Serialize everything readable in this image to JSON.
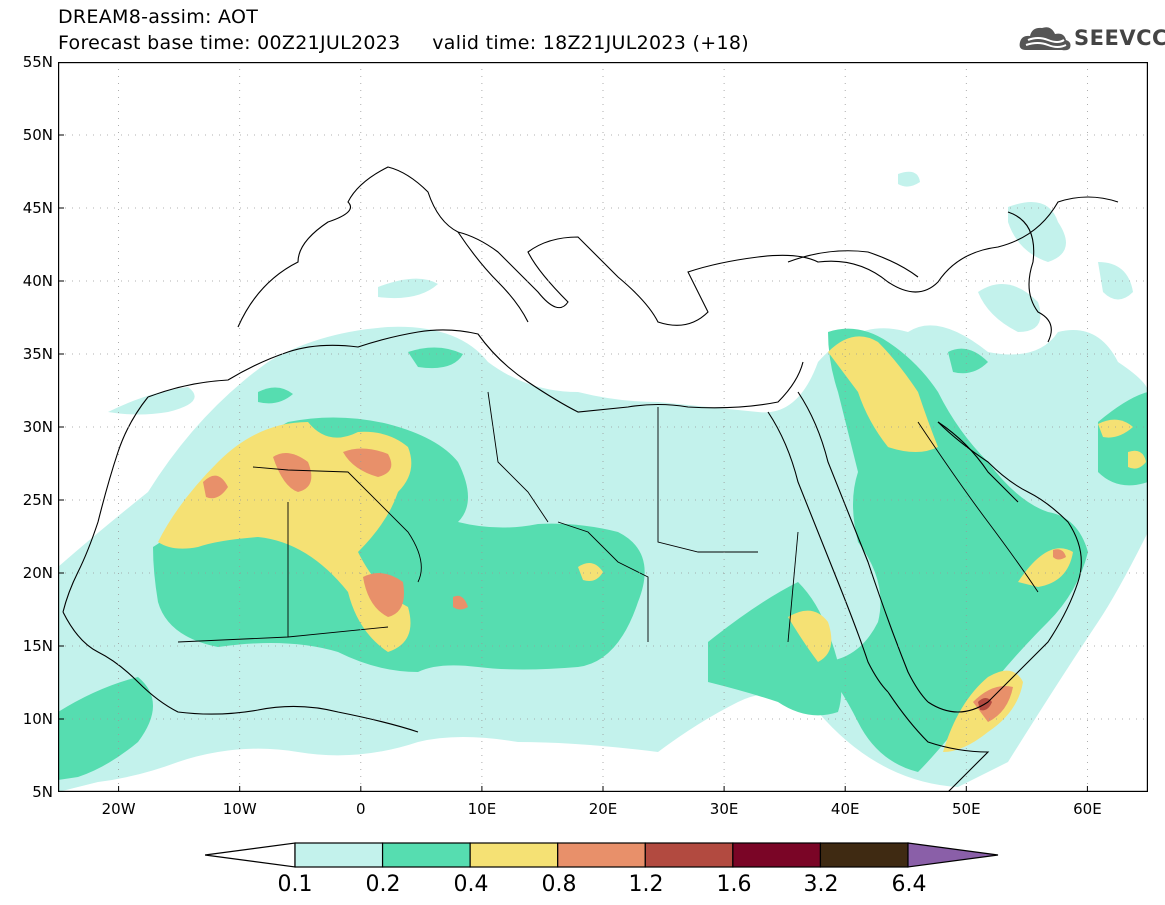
{
  "header": {
    "title_line1": "DREAM8-assim: AOT",
    "title_line2": "Forecast base time: 00Z21JUL2023     valid time: 18Z21JUL2023 (+18)",
    "logo_text": "SEEVCCC"
  },
  "map": {
    "lat_labels": [
      "55N",
      "50N",
      "45N",
      "40N",
      "35N",
      "30N",
      "25N",
      "20N",
      "15N",
      "10N",
      "5N"
    ],
    "lon_labels": [
      "20W",
      "10W",
      "0",
      "10E",
      "20E",
      "30E",
      "40E",
      "50E",
      "60E"
    ],
    "lon_range": [
      -25,
      65
    ],
    "lat_range": [
      5,
      55
    ]
  },
  "colorbar": {
    "labels": [
      "0.1",
      "0.2",
      "0.4",
      "0.8",
      "1.2",
      "1.6",
      "3.2",
      "6.4"
    ],
    "colors": [
      "#c3f2ec",
      "#56ddb0",
      "#f5e174",
      "#e8906a",
      "#b24a40",
      "#7a0526",
      "#3f2a12"
    ],
    "under_color": "#ffffff",
    "over_color": "#8a5fa8"
  }
}
